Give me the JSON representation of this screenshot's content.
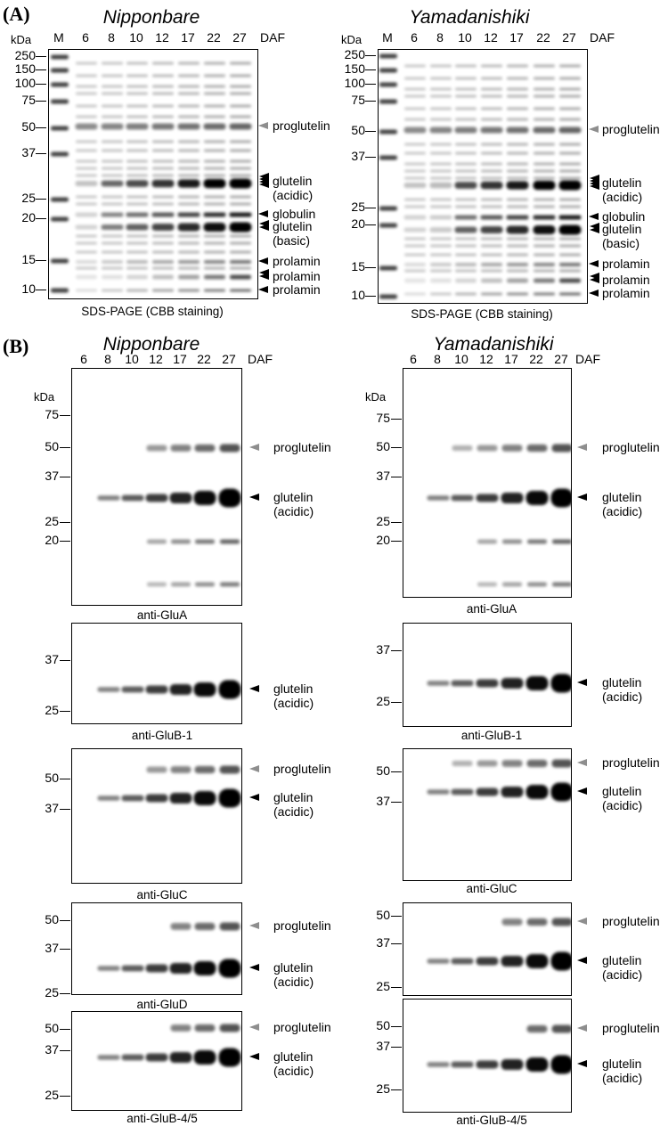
{
  "panels": {
    "A": {
      "letter": "(A)",
      "caption": "SDS-PAGE (CBB staining)",
      "kda": "kDa",
      "daf": "DAF",
      "lanes": [
        "M",
        "6",
        "8",
        "10",
        "12",
        "17",
        "22",
        "27"
      ],
      "left_title": "Nipponbare",
      "right_title": "Yamadanishiki",
      "markers": [
        "250",
        "150",
        "100",
        "75",
        "50",
        "37",
        "25",
        "20",
        "15",
        "10"
      ],
      "bands": [
        "proglutelin",
        "glutelin",
        "(acidic)",
        "globulin",
        "glutelin",
        "(basic)",
        "prolamin",
        "prolamin",
        "prolamin"
      ]
    },
    "B": {
      "letter": "(B)",
      "daf": "DAF",
      "kda": "kDa",
      "lanes": [
        "6",
        "8",
        "10",
        "12",
        "17",
        "22",
        "27"
      ],
      "left_title": "Nipponbare",
      "right_title": "Yamadanishiki",
      "blots": [
        {
          "antibody": "anti-GluA",
          "markers": [
            "75",
            "50",
            "37",
            "25",
            "20"
          ],
          "labels": [
            "proglutelin",
            "glutelin",
            "(acidic)"
          ]
        },
        {
          "antibody": "anti-GluB-1",
          "markers": [
            "37",
            "25"
          ],
          "labels": [
            "glutelin",
            "(acidic)"
          ]
        },
        {
          "antibody": "anti-GluC",
          "markers": [
            "50",
            "37"
          ],
          "labels": [
            "proglutelin",
            "glutelin",
            "(acidic)"
          ]
        },
        {
          "antibody": "anti-GluD",
          "markers": [
            "50",
            "37",
            "25"
          ],
          "labels": [
            "proglutelin",
            "glutelin",
            "(acidic)"
          ]
        },
        {
          "antibody": "anti-GluB-4/5",
          "markers": [
            "50",
            "37",
            "25"
          ],
          "labels": [
            "proglutelin",
            "glutelin",
            "(acidic)"
          ]
        }
      ]
    }
  },
  "colors": {
    "ink": "#000000",
    "grey_arrow": "#8e8e8e",
    "gel_bg": "#ffffff"
  }
}
